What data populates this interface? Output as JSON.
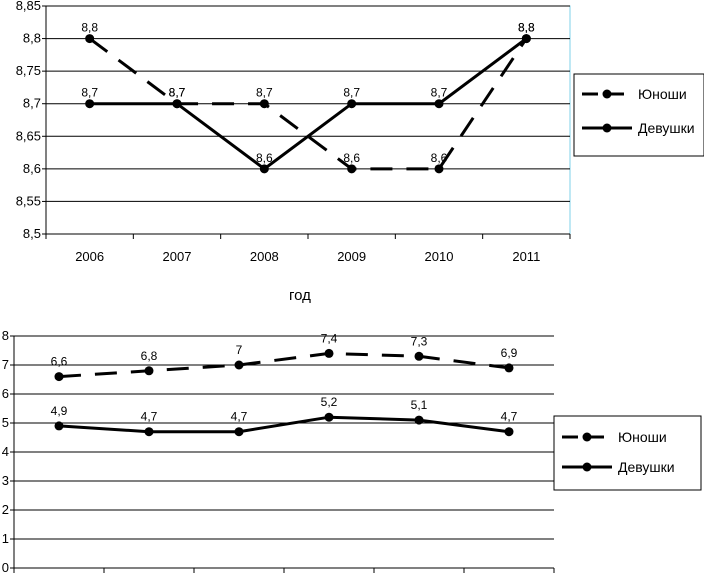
{
  "chart_data": [
    {
      "type": "line",
      "categories": [
        "2006",
        "2007",
        "2008",
        "2009",
        "2010",
        "2011"
      ],
      "series": [
        {
          "name": "Юноши",
          "style": "dashed",
          "values": [
            8.8,
            8.7,
            8.7,
            8.6,
            8.6,
            8.8
          ],
          "labels": [
            "8,8",
            "8,7",
            "8,7",
            "8,6",
            "8,6",
            "8,8"
          ]
        },
        {
          "name": "Девушки",
          "style": "solid",
          "values": [
            8.7,
            8.7,
            8.6,
            8.7,
            8.7,
            8.8
          ],
          "labels": [
            "8,7",
            "8,7",
            "8,6",
            "8,7",
            "8,7",
            "8,8"
          ]
        }
      ],
      "yticks": [
        "8,5",
        "8,55",
        "8,6",
        "8,65",
        "8,7",
        "8,75",
        "8,8",
        "8,85"
      ],
      "ylim": [
        8.5,
        8.85
      ],
      "xlabel": "год",
      "legend": [
        "Юноши",
        "Девушки"
      ],
      "legend_position": "right",
      "grid": true,
      "color": "#000000"
    },
    {
      "type": "line",
      "categories": [
        "",
        "",
        "",
        "",
        "",
        ""
      ],
      "series": [
        {
          "name": "Юноши",
          "style": "dashed",
          "values": [
            6.6,
            6.8,
            7.0,
            7.4,
            7.3,
            6.9
          ],
          "labels": [
            "6,6",
            "6,8",
            "7",
            "7,4",
            "7,3",
            "6,9"
          ]
        },
        {
          "name": "Девушки",
          "style": "solid",
          "values": [
            4.9,
            4.7,
            4.7,
            5.2,
            5.1,
            4.7
          ],
          "labels": [
            "4,9",
            "4,7",
            "4,7",
            "5,2",
            "5,1",
            "4,7"
          ]
        }
      ],
      "yticks": [
        "0",
        "1",
        "2",
        "3",
        "4",
        "5",
        "6",
        "7",
        "8"
      ],
      "ylim": [
        0,
        8
      ],
      "legend": [
        "Юноши",
        "Девушки"
      ],
      "legend_position": "right",
      "grid": true,
      "color": "#000000"
    }
  ]
}
